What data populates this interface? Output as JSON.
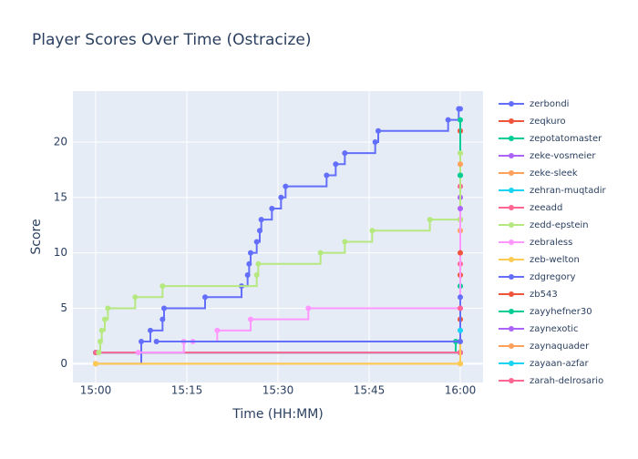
{
  "chart_data": {
    "type": "line",
    "line_shape": "hv",
    "title": "Player Scores Over Time (Ostracize)",
    "x_label": "Time (HH:MM)",
    "y_label": "Score",
    "xlim": [
      "14:56:15",
      "16:03:45"
    ],
    "xticks": [
      "15:00",
      "15:15",
      "15:30",
      "15:45",
      "16:00"
    ],
    "ylim": [
      -1.7,
      24.6
    ],
    "yticks": [
      0,
      5,
      10,
      15,
      20
    ],
    "grid": true,
    "legend_position": "right",
    "series": [
      {
        "name": "zerbondi",
        "color": "#636efa",
        "x": [
          "15:00",
          "15:07:30",
          "15:09",
          "15:11",
          "15:11:15",
          "15:18",
          "15:24",
          "15:25",
          "15:25:15",
          "15:25:30",
          "15:26:30",
          "15:27",
          "15:27:15",
          "15:29",
          "15:30:30",
          "15:31:15",
          "15:38",
          "15:39:30",
          "15:41",
          "15:46",
          "15:46:30",
          "15:58",
          "15:59:45",
          "16:00"
        ],
        "values": [
          0,
          2,
          3,
          4,
          5,
          6,
          7,
          8,
          9,
          10,
          11,
          12,
          13,
          14,
          15,
          16,
          17,
          18,
          19,
          20,
          21,
          22,
          23,
          23
        ]
      },
      {
        "name": "zeqkuro",
        "color": "#EF553B",
        "x": [
          "15:00",
          "16:00",
          "16:00",
          "16:00",
          "16:00",
          "16:00"
        ],
        "values": [
          1,
          1,
          4,
          8,
          13,
          21
        ]
      },
      {
        "name": "zepotatomaster",
        "color": "#00cc96",
        "x": [
          "15:00",
          "15:59:15",
          "16:00",
          "16:00",
          "16:00"
        ],
        "values": [
          1,
          2,
          7,
          17,
          22
        ]
      },
      {
        "name": "zeke-vosmeier",
        "color": "#ab63fa",
        "x": [
          "15:00",
          "16:00",
          "16:00"
        ],
        "values": [
          1,
          1,
          15
        ]
      },
      {
        "name": "zeke-sleek",
        "color": "#FFA15A",
        "x": [
          "15:00",
          "16:00",
          "16:00"
        ],
        "values": [
          0,
          0,
          12
        ]
      },
      {
        "name": "zehran-muqtadir",
        "color": "#19d3f3",
        "x": [
          "15:00",
          "16:00",
          "16:00"
        ],
        "values": [
          1,
          1,
          3
        ]
      },
      {
        "name": "zeeadd",
        "color": "#FF6692",
        "x": [
          "15:00",
          "16:00",
          "16:00",
          "16:00"
        ],
        "values": [
          1,
          1,
          9,
          16
        ]
      },
      {
        "name": "zedd-epstein",
        "color": "#B6E880",
        "x": [
          "15:00:30",
          "15:00:45",
          "15:01",
          "15:01:30",
          "15:02",
          "15:06:30",
          "15:11",
          "15:26:30",
          "15:26:45",
          "15:37",
          "15:41",
          "15:45:30",
          "15:55",
          "16:00",
          "16:00"
        ],
        "values": [
          1,
          2,
          3,
          4,
          5,
          6,
          7,
          8,
          9,
          10,
          11,
          12,
          13,
          13,
          19
        ]
      },
      {
        "name": "zebraless",
        "color": "#FF97FF",
        "x": [
          "15:07",
          "15:14:30",
          "15:16",
          "15:20",
          "15:25:30",
          "15:35",
          "16:00",
          "16:00"
        ],
        "values": [
          1,
          2,
          2,
          3,
          4,
          5,
          5,
          14
        ]
      },
      {
        "name": "zeb-welton",
        "color": "#FECB52",
        "x": [
          "15:00",
          "16:00",
          "16:00"
        ],
        "values": [
          0,
          0,
          2
        ]
      },
      {
        "name": "zdgregory",
        "color": "#636efa",
        "x": [
          "15:10",
          "16:00",
          "16:00"
        ],
        "values": [
          2,
          2,
          6
        ]
      },
      {
        "name": "zb543",
        "color": "#EF553B",
        "x": [
          "16:00"
        ],
        "values": [
          10
        ]
      },
      {
        "name": "zayyhefner30",
        "color": "#00cc96",
        "x": [
          "16:00"
        ],
        "values": [
          17
        ]
      },
      {
        "name": "zaynexotic",
        "color": "#ab63fa",
        "x": [
          "16:00"
        ],
        "values": [
          14
        ]
      },
      {
        "name": "zaynaquader",
        "color": "#FFA15A",
        "x": [
          "16:00"
        ],
        "values": [
          18
        ]
      },
      {
        "name": "zayaan-azfar",
        "color": "#19d3f3",
        "x": [
          "16:00"
        ],
        "values": [
          3
        ]
      },
      {
        "name": "zarah-delrosario",
        "color": "#FF6692",
        "x": [
          "16:00"
        ],
        "values": [
          5
        ]
      }
    ]
  }
}
